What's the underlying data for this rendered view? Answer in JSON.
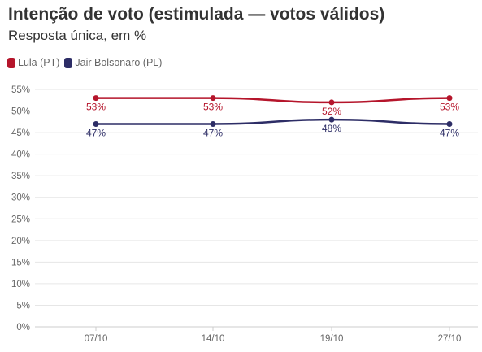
{
  "title": "Intenção de voto (estimulada — votos válidos)",
  "subtitle": "Resposta única, em %",
  "colors": {
    "lula": "#b5152b",
    "bolsonaro": "#2d2d66",
    "grid": "#e6e6e6"
  },
  "legend": [
    {
      "label": "Lula (PT)",
      "color": "#b5152b"
    },
    {
      "label": "Jair Bolsonaro (PL)",
      "color": "#2d2d66"
    }
  ],
  "chart_data": {
    "type": "line",
    "title": "Intenção de voto (estimulada — votos válidos)",
    "subtitle": "Resposta única, em %",
    "categories": [
      "07/10",
      "14/10",
      "19/10",
      "27/10"
    ],
    "series": [
      {
        "name": "Lula (PT)",
        "color": "#b5152b",
        "values": [
          53,
          53,
          52,
          53
        ],
        "labels": [
          "53%",
          "53%",
          "52%",
          "53%"
        ]
      },
      {
        "name": "Jair Bolsonaro (PL)",
        "color": "#2d2d66",
        "values": [
          47,
          47,
          48,
          47
        ],
        "labels": [
          "47%",
          "47%",
          "48%",
          "47%"
        ]
      }
    ],
    "ylim": [
      0,
      55
    ],
    "yticks": [
      0,
      5,
      10,
      15,
      20,
      25,
      30,
      35,
      40,
      45,
      50,
      55
    ],
    "ytick_labels": [
      "0%",
      "5%",
      "10%",
      "15%",
      "20%",
      "25%",
      "30%",
      "35%",
      "40%",
      "45%",
      "50%",
      "55%"
    ],
    "grid": true,
    "legend_position": "top-left"
  }
}
